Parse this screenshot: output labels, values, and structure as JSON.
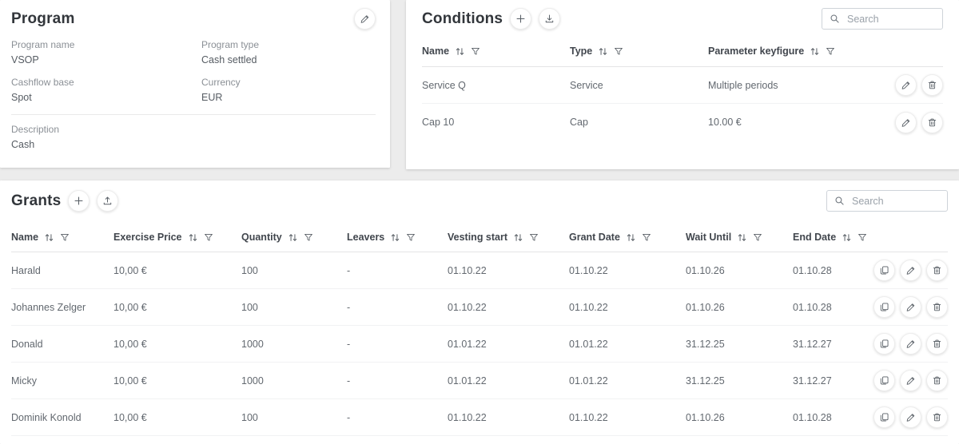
{
  "colors": {
    "page_bg": "#ececec",
    "card_bg": "#ffffff",
    "title_text": "#32363b",
    "muted_label": "#8b9096",
    "body_text": "#62686f",
    "header_border": "#e4e4e6"
  },
  "program": {
    "title": "Program",
    "fields": [
      {
        "label": "Program name",
        "value": "VSOP"
      },
      {
        "label": "Program type",
        "value": "Cash settled"
      },
      {
        "label": "Cashflow base",
        "value": "Spot"
      },
      {
        "label": "Currency",
        "value": "EUR"
      }
    ],
    "description": {
      "label": "Description",
      "value": "Cash"
    }
  },
  "conditions": {
    "title": "Conditions",
    "search_placeholder": "Search",
    "columns": [
      "Name",
      "Type",
      "Parameter keyfigure"
    ],
    "rows": [
      {
        "name": "Service Q",
        "type": "Service",
        "parameter_keyfigure": "Multiple periods"
      },
      {
        "name": "Cap 10",
        "type": "Cap",
        "parameter_keyfigure": "10.00 €"
      }
    ]
  },
  "grants": {
    "title": "Grants",
    "search_placeholder": "Search",
    "columns": [
      "Name",
      "Exercise Price",
      "Quantity",
      "Leavers",
      "Vesting start",
      "Grant Date",
      "Wait Until",
      "End Date"
    ],
    "rows": [
      {
        "name": "Harald",
        "exercise_price": "10,00 €",
        "quantity": "100",
        "leavers": "-",
        "vesting_start": "01.10.22",
        "grant_date": "01.10.22",
        "wait_until": "01.10.26",
        "end_date": "01.10.28"
      },
      {
        "name": "Johannes Zelger",
        "exercise_price": "10,00 €",
        "quantity": "100",
        "leavers": "-",
        "vesting_start": "01.10.22",
        "grant_date": "01.10.22",
        "wait_until": "01.10.26",
        "end_date": "01.10.28"
      },
      {
        "name": "Donald",
        "exercise_price": "10,00 €",
        "quantity": "1000",
        "leavers": "-",
        "vesting_start": "01.01.22",
        "grant_date": "01.01.22",
        "wait_until": "31.12.25",
        "end_date": "31.12.27"
      },
      {
        "name": "Micky",
        "exercise_price": "10,00 €",
        "quantity": "1000",
        "leavers": "-",
        "vesting_start": "01.01.22",
        "grant_date": "01.01.22",
        "wait_until": "31.12.25",
        "end_date": "31.12.27"
      },
      {
        "name": "Dominik Konold",
        "exercise_price": "10,00 €",
        "quantity": "100",
        "leavers": "-",
        "vesting_start": "01.10.22",
        "grant_date": "01.10.22",
        "wait_until": "01.10.26",
        "end_date": "01.10.28"
      }
    ]
  }
}
